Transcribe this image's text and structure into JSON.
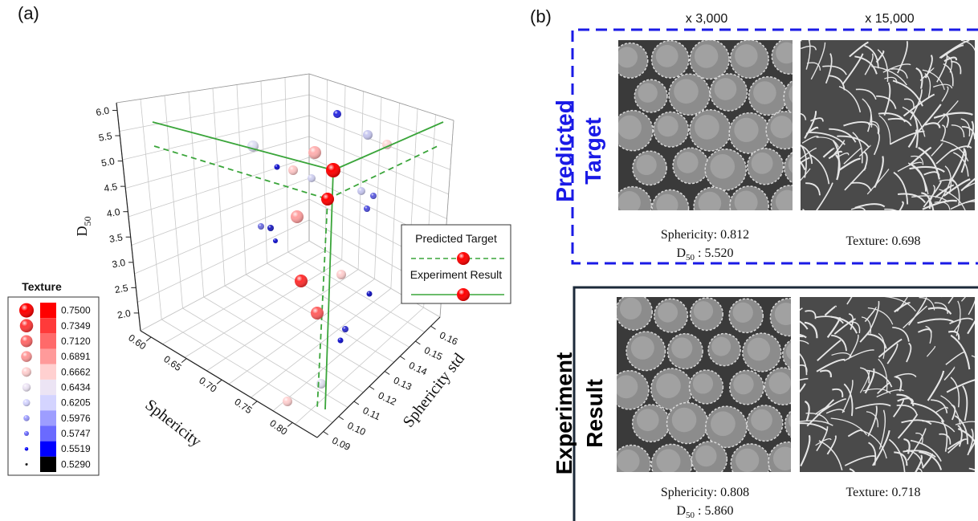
{
  "panel_a": {
    "label": "(a)",
    "z_axis": {
      "title": {
        "main": "D",
        "sub": "50"
      },
      "ticks": [
        "6.0",
        "5.5",
        "5.0",
        "4.5",
        "4.0",
        "3.5",
        "3.0",
        "2.5",
        "2.0"
      ]
    },
    "x_axis": {
      "title": "Sphericity",
      "ticks": [
        "0.60",
        "0.65",
        "0.70",
        "0.75",
        "0.80"
      ]
    },
    "y_axis": {
      "title": "Sphericity std",
      "ticks": [
        "0.09",
        "0.10",
        "0.11",
        "0.12",
        "0.13",
        "0.14",
        "0.15",
        "0.16"
      ]
    },
    "legend": {
      "items": [
        "Predicted Target",
        "Experiment Result"
      ]
    },
    "texture_scale": {
      "title": "Texture",
      "labels": [
        "0.7500",
        "0.7349",
        "0.7120",
        "0.6891",
        "0.6662",
        "0.6434",
        "0.6205",
        "0.5976",
        "0.5747",
        "0.5519",
        "0.5290"
      ]
    }
  },
  "panel_b": {
    "label": "(b)",
    "columns": [
      "x 3,000",
      "x 15,000"
    ],
    "rows": [
      {
        "title": [
          "Predicted",
          "Target"
        ],
        "sphericity": "Sphericity: 0.812",
        "d50": {
          "main": "D",
          "sub": "50",
          "rest": " : 5.520"
        },
        "texture": "Texture: 0.698"
      },
      {
        "title": [
          "Experiment",
          "Result"
        ],
        "sphericity": "Sphericity: 0.808",
        "d50": {
          "main": "D",
          "sub": "50",
          "rest": " : 5.860"
        },
        "texture": "Texture: 0.718"
      }
    ]
  }
}
